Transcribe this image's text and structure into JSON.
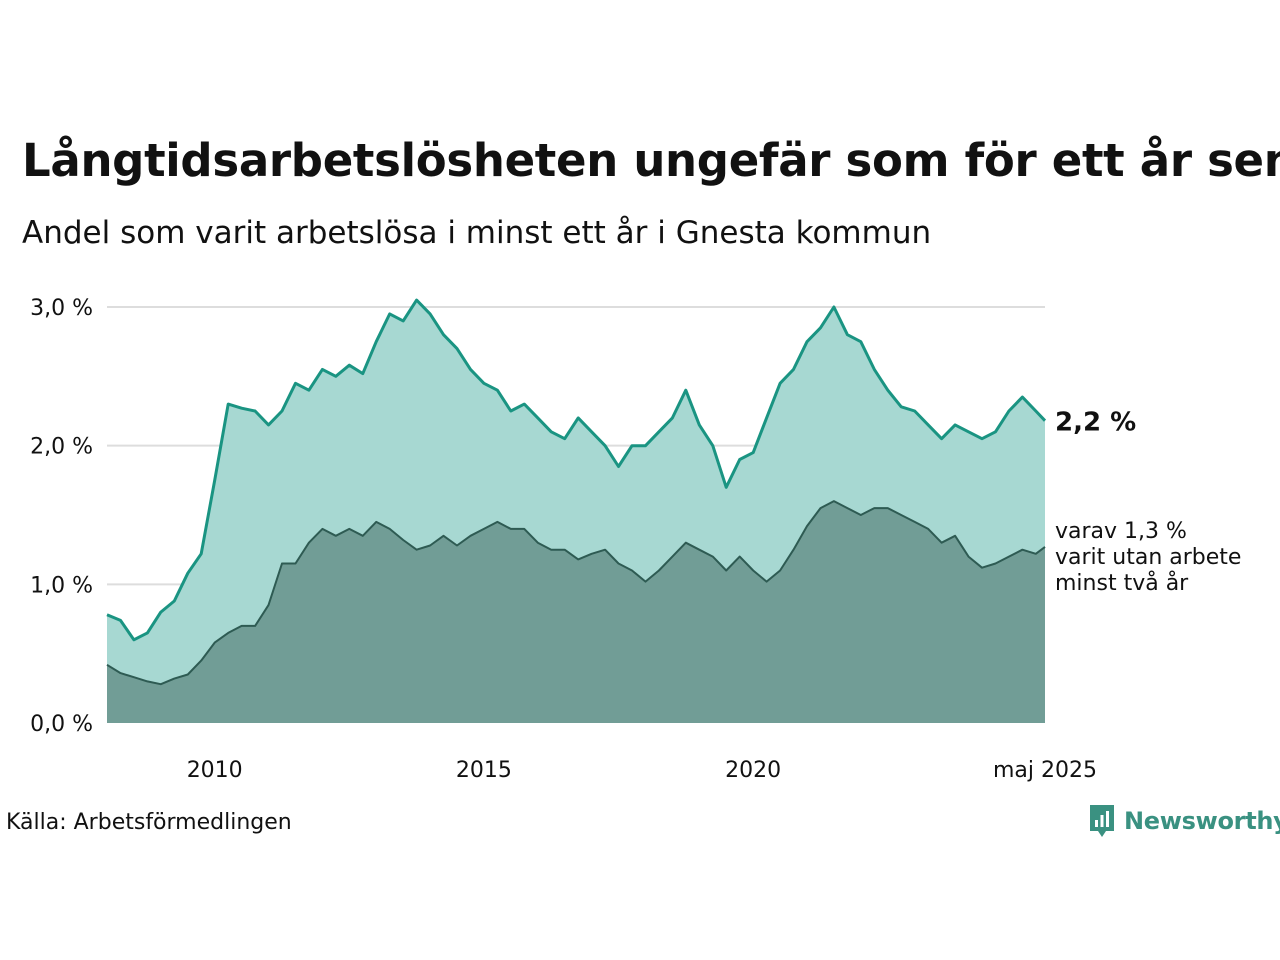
{
  "title": "Långtidsarbetslösheten ungefär som för ett år sen",
  "subtitle": "Andel som varit arbetslösa i minst ett år i Gnesta kommun",
  "source": "Källa: Arbetsförmedlingen",
  "brand": "Newsworthy",
  "colors": {
    "upper_line": "#1a9482",
    "upper_fill": "#a7d8d2",
    "lower_line": "#2e5b53",
    "lower_fill": "#719d96",
    "grid": "#dddddd"
  },
  "chart_data": {
    "type": "area",
    "x_unit": "year (decimal)",
    "xlim": [
      2008.0,
      2025.42
    ],
    "ylim": [
      0,
      3.0
    ],
    "y_ticks": [
      {
        "value": 0,
        "label": "0,0 %"
      },
      {
        "value": 1,
        "label": "1,0 %"
      },
      {
        "value": 2,
        "label": "2,0 %"
      },
      {
        "value": 3,
        "label": "3,0 %"
      }
    ],
    "x_ticks": [
      {
        "value": 2010,
        "label": "2010"
      },
      {
        "value": 2015,
        "label": "2015"
      },
      {
        "value": 2020,
        "label": "2020"
      },
      {
        "value": 2025.42,
        "label": "maj 2025"
      }
    ],
    "grid": true,
    "series": [
      {
        "name": "",
        "end_label": "2,2 %",
        "points": [
          [
            2008.0,
            0.78
          ],
          [
            2008.25,
            0.74
          ],
          [
            2008.5,
            0.6
          ],
          [
            2008.75,
            0.65
          ],
          [
            2009.0,
            0.8
          ],
          [
            2009.25,
            0.88
          ],
          [
            2009.5,
            1.08
          ],
          [
            2009.75,
            1.22
          ],
          [
            2010.0,
            1.75
          ],
          [
            2010.25,
            2.3
          ],
          [
            2010.5,
            2.27
          ],
          [
            2010.75,
            2.25
          ],
          [
            2011.0,
            2.15
          ],
          [
            2011.25,
            2.25
          ],
          [
            2011.5,
            2.45
          ],
          [
            2011.75,
            2.4
          ],
          [
            2012.0,
            2.55
          ],
          [
            2012.25,
            2.5
          ],
          [
            2012.5,
            2.58
          ],
          [
            2012.75,
            2.52
          ],
          [
            2013.0,
            2.75
          ],
          [
            2013.25,
            2.95
          ],
          [
            2013.5,
            2.9
          ],
          [
            2013.75,
            3.05
          ],
          [
            2014.0,
            2.95
          ],
          [
            2014.25,
            2.8
          ],
          [
            2014.5,
            2.7
          ],
          [
            2014.75,
            2.55
          ],
          [
            2015.0,
            2.45
          ],
          [
            2015.25,
            2.4
          ],
          [
            2015.5,
            2.25
          ],
          [
            2015.75,
            2.3
          ],
          [
            2016.0,
            2.2
          ],
          [
            2016.25,
            2.1
          ],
          [
            2016.5,
            2.05
          ],
          [
            2016.75,
            2.2
          ],
          [
            2017.0,
            2.1
          ],
          [
            2017.25,
            2.0
          ],
          [
            2017.5,
            1.85
          ],
          [
            2017.75,
            2.0
          ],
          [
            2018.0,
            2.0
          ],
          [
            2018.25,
            2.1
          ],
          [
            2018.5,
            2.2
          ],
          [
            2018.75,
            2.4
          ],
          [
            2019.0,
            2.15
          ],
          [
            2019.25,
            2.0
          ],
          [
            2019.5,
            1.7
          ],
          [
            2019.75,
            1.9
          ],
          [
            2020.0,
            1.95
          ],
          [
            2020.25,
            2.2
          ],
          [
            2020.5,
            2.45
          ],
          [
            2020.75,
            2.55
          ],
          [
            2021.0,
            2.75
          ],
          [
            2021.25,
            2.85
          ],
          [
            2021.5,
            3.0
          ],
          [
            2021.75,
            2.8
          ],
          [
            2022.0,
            2.75
          ],
          [
            2022.25,
            2.55
          ],
          [
            2022.5,
            2.4
          ],
          [
            2022.75,
            2.28
          ],
          [
            2023.0,
            2.25
          ],
          [
            2023.25,
            2.15
          ],
          [
            2023.5,
            2.05
          ],
          [
            2023.75,
            2.15
          ],
          [
            2024.0,
            2.1
          ],
          [
            2024.25,
            2.05
          ],
          [
            2024.5,
            2.1
          ],
          [
            2024.75,
            2.25
          ],
          [
            2025.0,
            2.35
          ],
          [
            2025.25,
            2.25
          ],
          [
            2025.42,
            2.18
          ]
        ]
      },
      {
        "name": "",
        "end_label_lines": [
          "varav 1,3 %",
          "varit utan arbete",
          "minst två år"
        ],
        "points": [
          [
            2008.0,
            0.42
          ],
          [
            2008.25,
            0.36
          ],
          [
            2008.5,
            0.33
          ],
          [
            2008.75,
            0.3
          ],
          [
            2009.0,
            0.28
          ],
          [
            2009.25,
            0.32
          ],
          [
            2009.5,
            0.35
          ],
          [
            2009.75,
            0.45
          ],
          [
            2010.0,
            0.58
          ],
          [
            2010.25,
            0.65
          ],
          [
            2010.5,
            0.7
          ],
          [
            2010.75,
            0.7
          ],
          [
            2011.0,
            0.85
          ],
          [
            2011.25,
            1.15
          ],
          [
            2011.5,
            1.15
          ],
          [
            2011.75,
            1.3
          ],
          [
            2012.0,
            1.4
          ],
          [
            2012.25,
            1.35
          ],
          [
            2012.5,
            1.4
          ],
          [
            2012.75,
            1.35
          ],
          [
            2013.0,
            1.45
          ],
          [
            2013.25,
            1.4
          ],
          [
            2013.5,
            1.32
          ],
          [
            2013.75,
            1.25
          ],
          [
            2014.0,
            1.28
          ],
          [
            2014.25,
            1.35
          ],
          [
            2014.5,
            1.28
          ],
          [
            2014.75,
            1.35
          ],
          [
            2015.0,
            1.4
          ],
          [
            2015.25,
            1.45
          ],
          [
            2015.5,
            1.4
          ],
          [
            2015.75,
            1.4
          ],
          [
            2016.0,
            1.3
          ],
          [
            2016.25,
            1.25
          ],
          [
            2016.5,
            1.25
          ],
          [
            2016.75,
            1.18
          ],
          [
            2017.0,
            1.22
          ],
          [
            2017.25,
            1.25
          ],
          [
            2017.5,
            1.15
          ],
          [
            2017.75,
            1.1
          ],
          [
            2018.0,
            1.02
          ],
          [
            2018.25,
            1.1
          ],
          [
            2018.5,
            1.2
          ],
          [
            2018.75,
            1.3
          ],
          [
            2019.0,
            1.25
          ],
          [
            2019.25,
            1.2
          ],
          [
            2019.5,
            1.1
          ],
          [
            2019.75,
            1.2
          ],
          [
            2020.0,
            1.1
          ],
          [
            2020.25,
            1.02
          ],
          [
            2020.5,
            1.1
          ],
          [
            2020.75,
            1.25
          ],
          [
            2021.0,
            1.42
          ],
          [
            2021.25,
            1.55
          ],
          [
            2021.5,
            1.6
          ],
          [
            2021.75,
            1.55
          ],
          [
            2022.0,
            1.5
          ],
          [
            2022.25,
            1.55
          ],
          [
            2022.5,
            1.55
          ],
          [
            2022.75,
            1.5
          ],
          [
            2023.0,
            1.45
          ],
          [
            2023.25,
            1.4
          ],
          [
            2023.5,
            1.3
          ],
          [
            2023.75,
            1.35
          ],
          [
            2024.0,
            1.2
          ],
          [
            2024.25,
            1.12
          ],
          [
            2024.5,
            1.15
          ],
          [
            2024.75,
            1.2
          ],
          [
            2025.0,
            1.25
          ],
          [
            2025.25,
            1.22
          ],
          [
            2025.42,
            1.27
          ]
        ]
      }
    ]
  }
}
